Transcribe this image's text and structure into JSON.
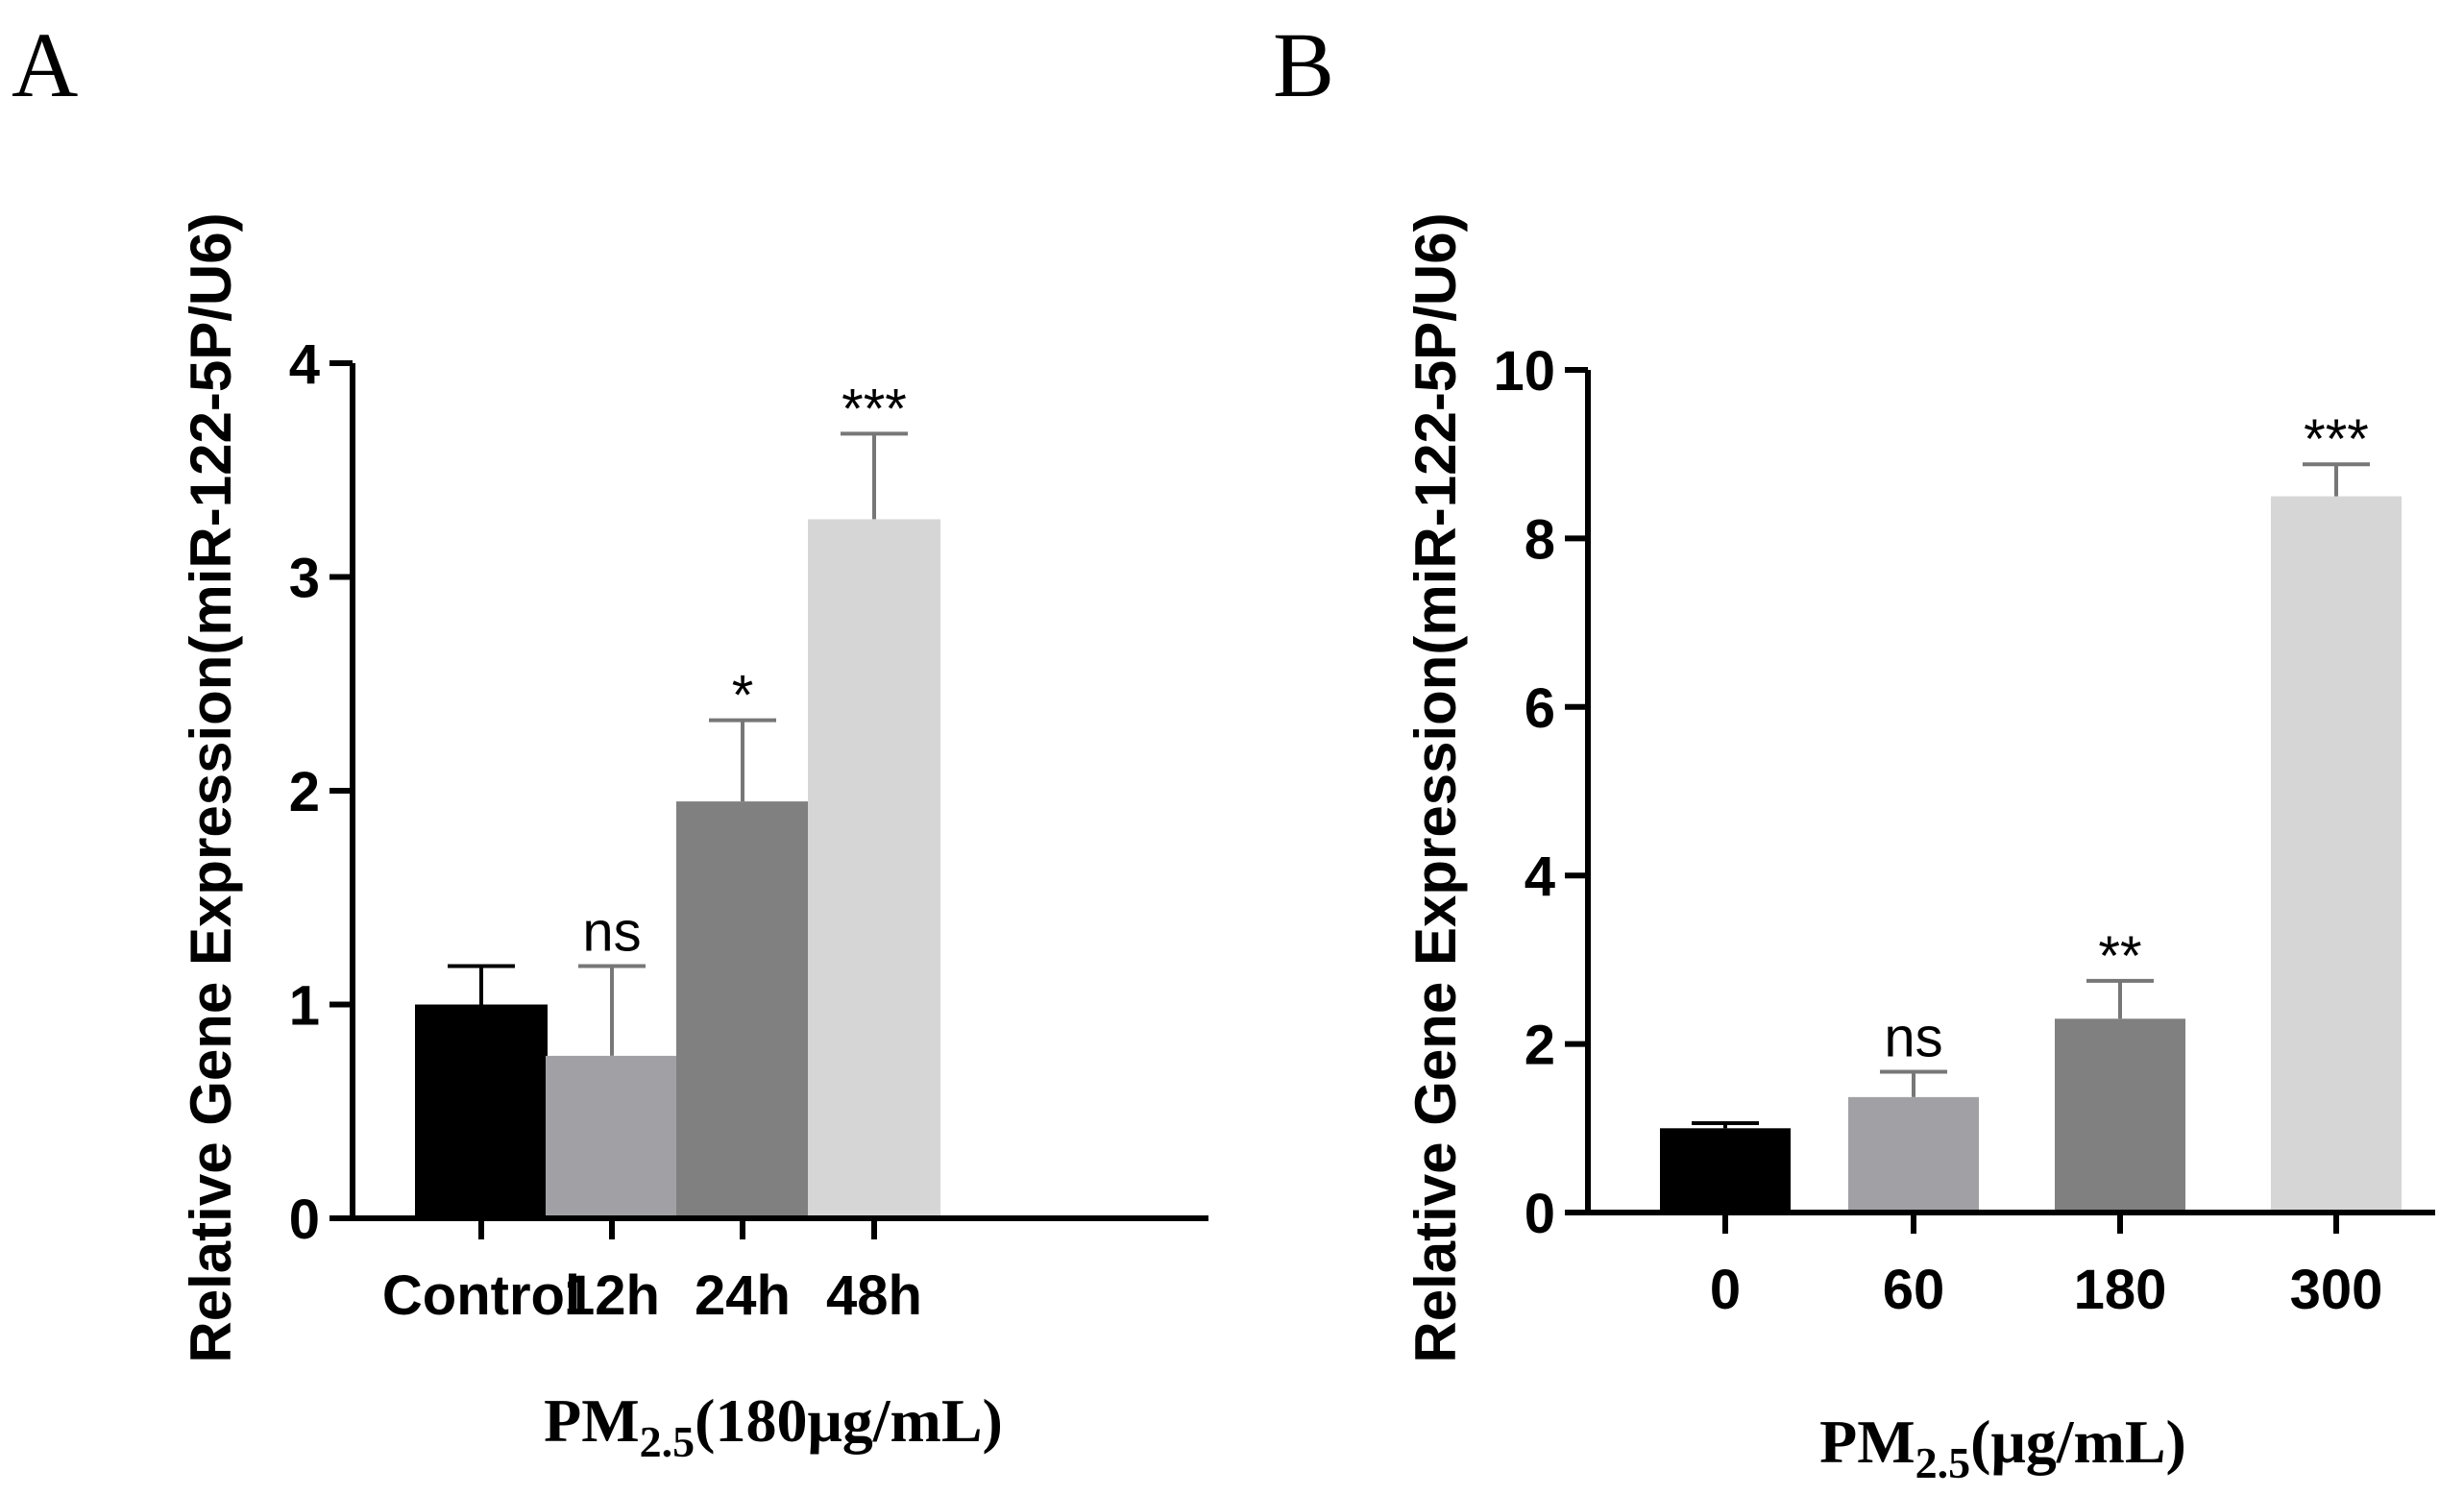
{
  "chart_data": [
    {
      "type": "bar",
      "panel": "A",
      "categories": [
        "Control",
        "12h",
        "24h",
        "48h"
      ],
      "values": [
        1.0,
        0.76,
        1.95,
        3.27
      ],
      "errors": [
        0.18,
        0.42,
        0.38,
        0.4
      ],
      "significance": [
        "",
        "ns",
        "*",
        "***"
      ],
      "bar_colors": [
        "#000000",
        "#a1a1a5",
        "#808080",
        "#d6d6d6"
      ],
      "ylim": [
        0,
        4
      ],
      "yticks": [
        0,
        1,
        2,
        3,
        4
      ],
      "ylabel": "Relative Gene Expression(miR-122-5P/U6)",
      "xlabel": {
        "prefix": "PM",
        "subscript": "2.5",
        "suffix": "(180μg/mL)"
      }
    },
    {
      "type": "bar",
      "panel": "B",
      "categories": [
        "0",
        "60",
        "180",
        "300"
      ],
      "values": [
        1.0,
        1.37,
        2.3,
        8.5
      ],
      "errors": [
        0.06,
        0.3,
        0.45,
        0.38
      ],
      "significance": [
        "",
        "ns",
        "**",
        "***"
      ],
      "bar_colors": [
        "#000000",
        "#a1a1a5",
        "#808080",
        "#d6d6d6"
      ],
      "ylim": [
        0,
        10
      ],
      "yticks": [
        0,
        2,
        4,
        6,
        8,
        10
      ],
      "ylabel": "Relative Gene Expression(miR-122-5P/U6)",
      "xlabel": {
        "prefix": "PM",
        "subscript": "2.5",
        "suffix": "(μg/mL)"
      }
    }
  ]
}
